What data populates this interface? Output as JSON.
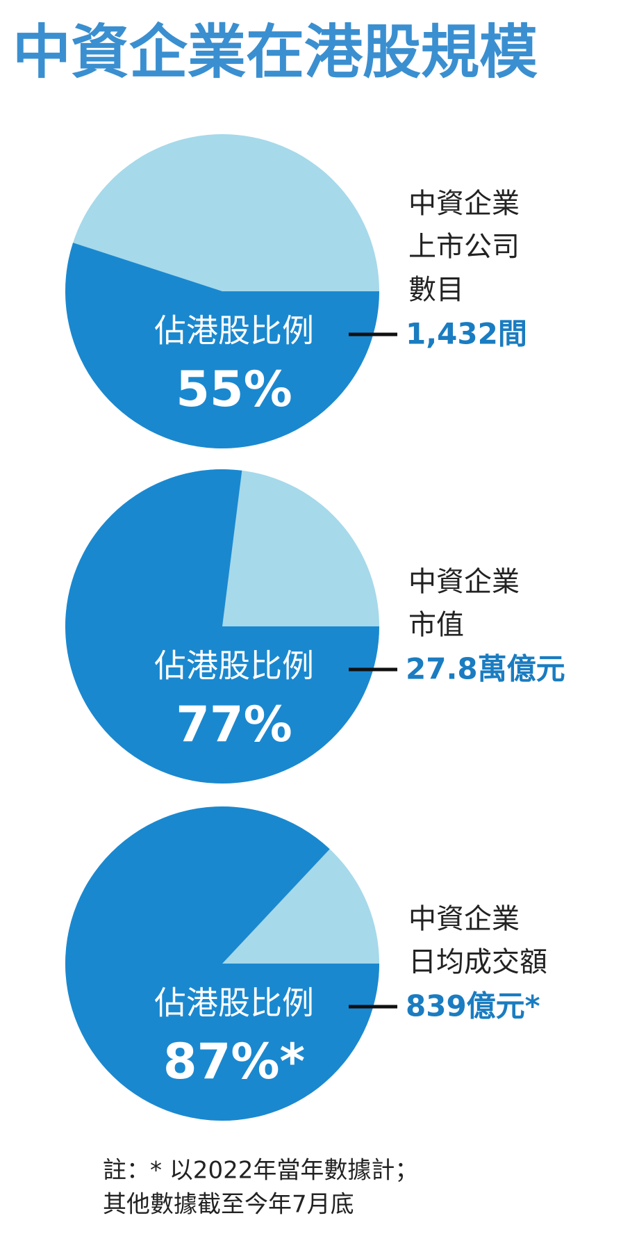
{
  "title": "中資企業在港股規模",
  "chart_data": [
    {
      "type": "pie",
      "categories": [
        "佔港股比例"
      ],
      "values": [
        55
      ],
      "value_labels": [
        "55%"
      ],
      "color": "#1a88cf",
      "rest_color": "#a6d9ea",
      "annotation": {
        "lines": [
          "中資企業",
          "上市公司",
          "數目"
        ],
        "value": "1,432間"
      }
    },
    {
      "type": "pie",
      "categories": [
        "佔港股比例"
      ],
      "values": [
        77
      ],
      "value_labels": [
        "77%"
      ],
      "color": "#1a88cf",
      "rest_color": "#a6d9ea",
      "annotation": {
        "lines": [
          "中資企業",
          "市值"
        ],
        "value": "27.8萬億元"
      }
    },
    {
      "type": "pie",
      "categories": [
        "佔港股比例"
      ],
      "values": [
        87
      ],
      "value_labels": [
        "87%*"
      ],
      "color": "#1a88cf",
      "rest_color": "#a6d9ea",
      "annotation": {
        "lines": [
          "中資企業",
          "日均成交額"
        ],
        "value": "839億元*"
      }
    }
  ],
  "note": [
    "註：* 以2022年當年數據計；",
    "其他數據截至今年7月底"
  ]
}
